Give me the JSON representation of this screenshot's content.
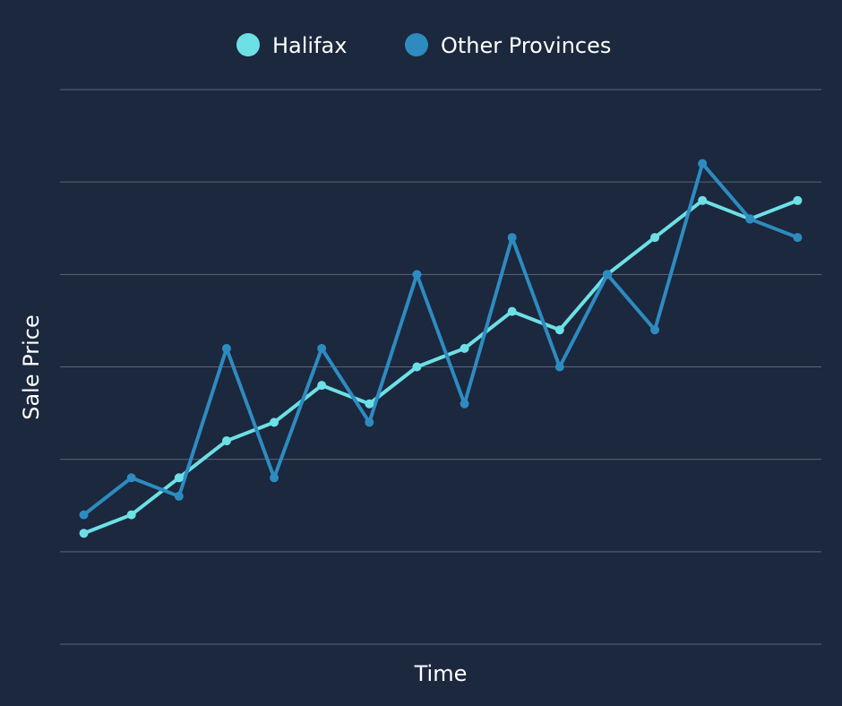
{
  "chart_data": {
    "type": "line",
    "x_label": "Time",
    "y_label": "Sale Price",
    "categories": [
      null,
      null,
      null,
      null,
      null,
      null,
      null,
      null,
      null,
      null,
      null,
      null,
      null,
      null,
      null,
      null
    ],
    "series": [
      {
        "name": "Halifax",
        "color": "#6de0e6",
        "values": [
          1.2,
          1.4,
          1.8,
          2.2,
          2.4,
          2.8,
          2.6,
          3.0,
          3.2,
          3.6,
          3.4,
          4.0,
          4.4,
          4.8,
          4.6,
          4.8
        ]
      },
      {
        "name": "Other Provinces",
        "color": "#2e8bc0",
        "values": [
          1.4,
          1.8,
          1.6,
          3.2,
          1.8,
          3.2,
          2.4,
          4.0,
          2.6,
          4.4,
          3.0,
          4.0,
          3.4,
          5.2,
          4.6,
          4.4
        ]
      }
    ],
    "ylim": [
      0,
      6
    ],
    "yticks": [
      0,
      1,
      2,
      3,
      4,
      5,
      6
    ],
    "grid": true,
    "legend": "top"
  }
}
